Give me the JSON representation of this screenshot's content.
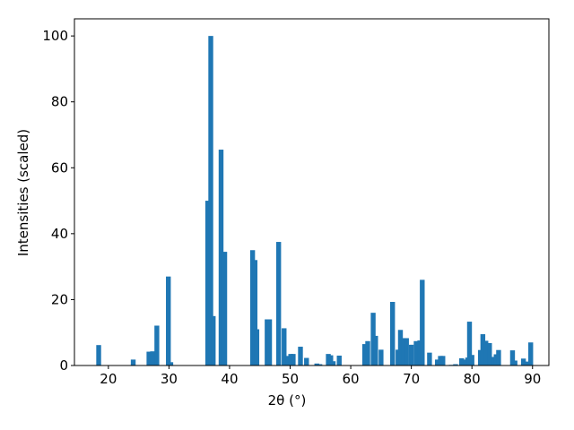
{
  "chart_data": {
    "type": "bar",
    "xlabel": "2θ (°)",
    "ylabel": "Intensities (scaled)",
    "color": "#1f77b4",
    "grid": false,
    "x": [
      18.4,
      24.1,
      26.7,
      27.3,
      28.0,
      29.9,
      30.3,
      36.4,
      36.9,
      37.3,
      38.6,
      39.2,
      43.8,
      44.2,
      44.5,
      46.2,
      46.6,
      48.1,
      49.0,
      49.6,
      50.1,
      50.5,
      51.7,
      52.7,
      54.4,
      54.9,
      56.3,
      56.7,
      57.1,
      58.1,
      62.3,
      62.8,
      63.7,
      64.1,
      65.0,
      66.9,
      67.8,
      68.2,
      68.7,
      69.2,
      70.0,
      70.8,
      71.4,
      71.8,
      73.0,
      74.3,
      74.8,
      75.2,
      76.6,
      77.3,
      78.3,
      78.9,
      79.3,
      79.6,
      80.0,
      81.4,
      81.8,
      82.3,
      82.9,
      83.6,
      84.0,
      84.4,
      86.7,
      87.1,
      88.5,
      89.0,
      89.7
    ],
    "values": [
      6.2,
      1.8,
      4.2,
      4.3,
      12.1,
      27,
      1,
      50,
      100,
      15,
      65.5,
      34.5,
      35,
      32,
      11,
      14,
      14,
      37.5,
      11.3,
      2.9,
      3.5,
      3.5,
      5.7,
      2.3,
      0.6,
      0.4,
      3.5,
      3.1,
      1.3,
      3.0,
      6.5,
      7.4,
      16,
      9,
      4.8,
      19.3,
      4.8,
      10.8,
      8.3,
      8.3,
      6.3,
      7.4,
      7.6,
      26,
      3.9,
      1.8,
      2.9,
      2.9,
      0.2,
      0.4,
      2.2,
      1.8,
      2.4,
      13.3,
      3.2,
      4.7,
      9.5,
      7.5,
      6.8,
      2.6,
      3.4,
      4.7,
      4.6,
      1.5,
      2.1,
      1.2,
      7.0
    ],
    "xlim": [
      14.4,
      92.7
    ],
    "ylim": [
      0,
      105.2
    ],
    "xticks": [
      20,
      30,
      40,
      50,
      60,
      70,
      80,
      90
    ],
    "yticks": [
      0,
      20,
      40,
      60,
      80,
      100
    ]
  }
}
